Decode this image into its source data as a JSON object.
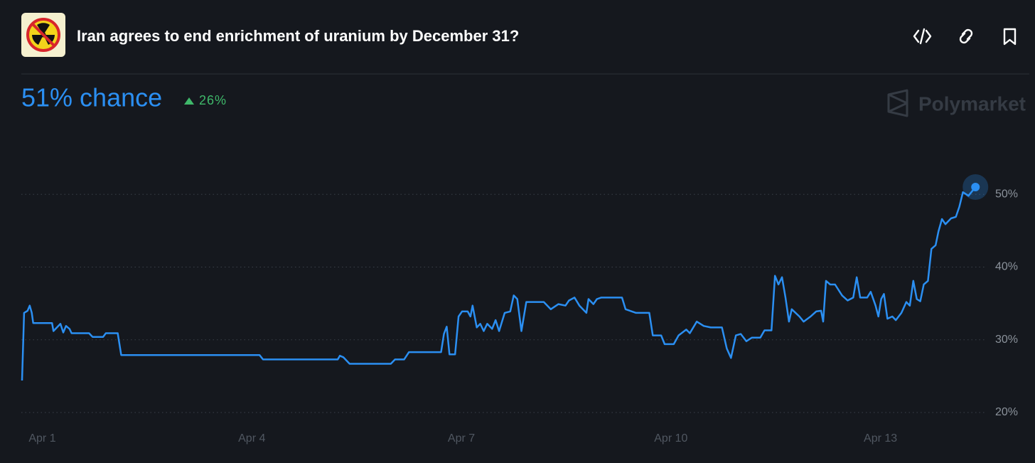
{
  "chart_data": {
    "type": "line",
    "title": "Iran agrees to end enrichment of uranium by December 31?",
    "headline": "51% chance",
    "change": "26%",
    "brand": "Polymarket",
    "color": "#2b8ff2",
    "grid": true,
    "xlim": [
      0.7,
      14.5
    ],
    "xticks": [
      {
        "value": 1,
        "label": "Apr 1"
      },
      {
        "value": 4,
        "label": "Apr 4"
      },
      {
        "value": 7,
        "label": "Apr 7"
      },
      {
        "value": 10,
        "label": "Apr 10"
      },
      {
        "value": 13,
        "label": "Apr 13"
      }
    ],
    "ylim": [
      20,
      60
    ],
    "yticks": [
      {
        "value": 20,
        "label": "20%"
      },
      {
        "value": 30,
        "label": "30%"
      },
      {
        "value": 40,
        "label": "40%"
      },
      {
        "value": 50,
        "label": "50%"
      }
    ],
    "x": [
      0.71,
      0.74,
      0.79,
      0.82,
      0.85,
      0.87,
      1.14,
      1.16,
      1.21,
      1.26,
      1.3,
      1.34,
      1.39,
      1.42,
      1.67,
      1.72,
      1.87,
      1.91,
      2.08,
      2.13,
      4.11,
      4.16,
      5.23,
      5.26,
      5.31,
      5.4,
      5.99,
      6.05,
      6.18,
      6.25,
      6.71,
      6.75,
      6.79,
      6.83,
      6.91,
      6.96,
      7.01,
      7.09,
      7.13,
      7.16,
      7.22,
      7.27,
      7.32,
      7.37,
      7.44,
      7.49,
      7.54,
      7.62,
      7.7,
      7.75,
      7.8,
      7.86,
      7.93,
      8.18,
      8.28,
      8.39,
      8.49,
      8.54,
      8.62,
      8.69,
      8.79,
      8.82,
      8.89,
      8.94,
      9.0,
      9.3,
      9.35,
      9.5,
      9.69,
      9.74,
      9.86,
      9.91,
      10.04,
      10.11,
      10.22,
      10.27,
      10.37,
      10.47,
      10.57,
      10.73,
      10.8,
      10.86,
      10.93,
      11.0,
      11.08,
      11.16,
      11.28,
      11.34,
      11.44,
      11.49,
      11.54,
      11.59,
      11.64,
      11.69,
      11.73,
      11.84,
      11.9,
      12.0,
      12.08,
      12.15,
      12.18,
      12.22,
      12.28,
      12.35,
      12.45,
      12.53,
      12.61,
      12.66,
      12.71,
      12.81,
      12.86,
      12.93,
      12.97,
      13.01,
      13.05,
      13.1,
      13.17,
      13.22,
      13.3,
      13.37,
      13.42,
      13.47,
      13.52,
      13.57,
      13.62,
      13.68,
      13.73,
      13.79,
      13.83,
      13.88,
      13.93,
      14.01,
      14.08,
      14.13,
      14.18,
      14.26,
      14.36
    ],
    "values": [
      24.4,
      33.7,
      34.0,
      34.7,
      33.7,
      32.3,
      32.3,
      31.2,
      31.7,
      32.2,
      31.0,
      31.9,
      31.5,
      30.9,
      30.9,
      30.4,
      30.4,
      30.9,
      30.9,
      27.9,
      27.9,
      27.3,
      27.3,
      27.8,
      27.6,
      26.7,
      26.7,
      27.3,
      27.3,
      28.3,
      28.3,
      30.8,
      31.8,
      28.0,
      28.0,
      33.2,
      33.9,
      33.9,
      33.2,
      34.7,
      31.7,
      32.2,
      31.2,
      32.2,
      31.5,
      32.7,
      31.2,
      33.7,
      33.9,
      36.1,
      35.6,
      31.2,
      35.2,
      35.2,
      34.2,
      34.9,
      34.7,
      35.4,
      35.8,
      34.7,
      33.7,
      35.6,
      34.9,
      35.6,
      35.8,
      35.8,
      34.2,
      33.7,
      33.7,
      30.6,
      30.6,
      29.4,
      29.4,
      30.6,
      31.4,
      30.9,
      32.5,
      31.9,
      31.7,
      31.7,
      28.8,
      27.5,
      30.6,
      30.8,
      29.8,
      30.3,
      30.3,
      31.3,
      31.3,
      38.8,
      37.6,
      38.6,
      35.8,
      32.5,
      34.2,
      33.2,
      32.5,
      33.2,
      33.9,
      34.0,
      32.5,
      38.1,
      37.6,
      37.6,
      36.1,
      35.4,
      35.8,
      38.6,
      35.8,
      35.8,
      36.6,
      34.7,
      33.2,
      35.6,
      36.3,
      32.9,
      33.2,
      32.7,
      33.7,
      35.2,
      34.7,
      38.1,
      35.6,
      35.3,
      37.6,
      38.1,
      42.5,
      43.0,
      44.9,
      46.6,
      45.9,
      46.7,
      46.9,
      48.3,
      50.3,
      49.8,
      51
    ]
  }
}
